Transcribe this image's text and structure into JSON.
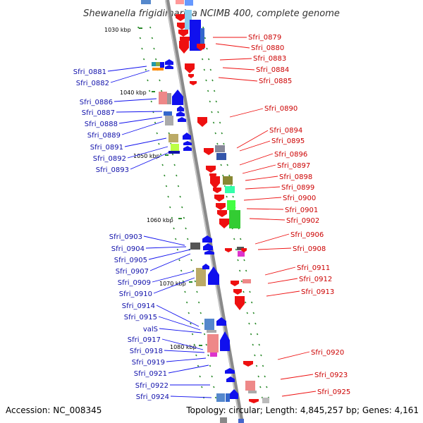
{
  "title": "Shewanella frigidimarina NCIMB 400, complete genome",
  "footer": {
    "accession": "Accession: NC_008345",
    "topology": "Topology: circular; Length: 4,845,257 bp; Genes: 4,161"
  },
  "colors": {
    "left_label": "#1010aa",
    "right_label": "#cc0000",
    "left_arrow": "#1010ee",
    "right_arrow": "#ee1010",
    "backbone": "#888888",
    "tick": "#2a8a2a"
  },
  "kbp_ticks": [
    "1030 kbp",
    "1040 kbp",
    "1050 kbp",
    "1060 kbp",
    "1070 kbp",
    "1080 kbp"
  ],
  "left_genes": [
    "Sfri_0881",
    "Sfri_0882",
    "Sfri_0886",
    "Sfri_0887",
    "Sfri_0888",
    "Sfri_0889",
    "Sfri_0891",
    "Sfri_0892",
    "Sfri_0893",
    "Sfri_0903",
    "Sfri_0904",
    "Sfri_0905",
    "Sfri_0907",
    "Sfri_0909",
    "Sfri_0910",
    "Sfri_0914",
    "Sfri_0915",
    "valS",
    "Sfri_0917",
    "Sfri_0918",
    "Sfri_0919",
    "Sfri_0921",
    "Sfri_0922",
    "Sfri_0924"
  ],
  "right_genes": [
    "Sfri_0879",
    "Sfri_0880",
    "Sfri_0883",
    "Sfri_0884",
    "Sfri_0885",
    "Sfri_0890",
    "Sfri_0894",
    "Sfri_0895",
    "Sfri_0896",
    "Sfri_0897",
    "Sfri_0898",
    "Sfri_0899",
    "Sfri_0900",
    "Sfri_0901",
    "Sfri_0902",
    "Sfri_0906",
    "Sfri_0908",
    "Sfri_0911",
    "Sfri_0912",
    "Sfri_0913",
    "Sfri_0920",
    "Sfri_0923",
    "Sfri_0925"
  ]
}
